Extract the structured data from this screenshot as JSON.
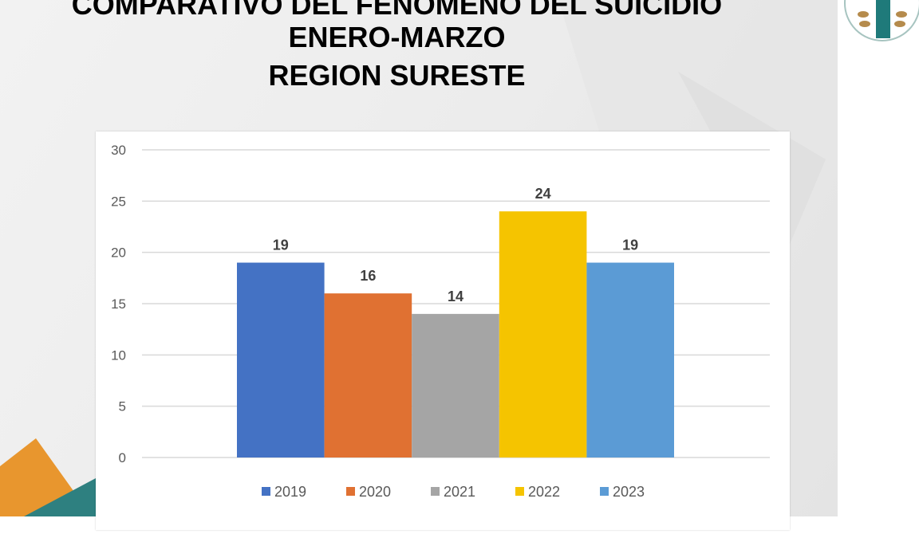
{
  "title": {
    "line1": "COMPARATIVO DEL FENOMENO DEL SUICIDIO",
    "line2": "ENERO-MARZO",
    "line3": "REGION SURESTE"
  },
  "chart_data": {
    "type": "bar",
    "categories": [
      "2019",
      "2020",
      "2021",
      "2022",
      "2023"
    ],
    "values": [
      19,
      16,
      14,
      24,
      19
    ],
    "colors": [
      "#4472C4",
      "#E07132",
      "#A5A5A5",
      "#F5C400",
      "#5B9BD5"
    ],
    "ylim": [
      0,
      30
    ],
    "yticks": [
      0,
      5,
      10,
      15,
      20,
      25,
      30
    ],
    "grid": true,
    "legend": "bottom",
    "xlabel": "",
    "ylabel": ""
  },
  "colors": {
    "accent_orange": "#E8962E",
    "accent_teal": "#2E8080"
  }
}
